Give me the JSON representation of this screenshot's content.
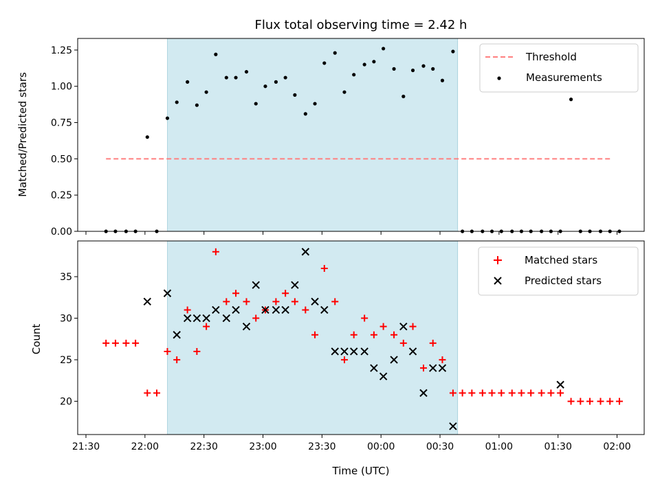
{
  "chart_data": [
    {
      "type": "scatter",
      "title": "Flux total observing time = 2.42 h",
      "xlabel": "",
      "ylabel": "Matched/Predicted stars",
      "ylim": [
        0.0,
        1.33
      ],
      "yticks": [
        "0.00",
        "0.25",
        "0.50",
        "0.75",
        "1.00",
        "1.25"
      ],
      "ytick_values": [
        0,
        0.25,
        0.5,
        0.75,
        1.0,
        1.25
      ],
      "xlim_hours": [
        21.43,
        26.23
      ],
      "shaded_interval_hours": [
        22.19,
        24.65
      ],
      "shade_color": "#add8e6",
      "threshold": {
        "name": "Threshold",
        "value": 0.5,
        "x_range_hours": [
          21.67,
          25.95
        ],
        "color": "#ff7f7f"
      },
      "legend_position": "top-right",
      "series": [
        {
          "name": "Measurements",
          "color": "#000000",
          "x": [
            21.67,
            21.75,
            21.84,
            21.92,
            22.02,
            22.1,
            22.19,
            22.27,
            22.36,
            22.44,
            22.52,
            22.6,
            22.69,
            22.77,
            22.86,
            22.94,
            23.02,
            23.11,
            23.19,
            23.27,
            23.36,
            23.44,
            23.52,
            23.61,
            23.69,
            23.77,
            23.86,
            23.94,
            24.02,
            24.11,
            24.19,
            24.27,
            24.36,
            24.44,
            24.52,
            24.61,
            24.69,
            24.77,
            24.86,
            24.94,
            25.02,
            25.11,
            25.19,
            25.27,
            25.36,
            25.44,
            25.52,
            25.61,
            25.69,
            25.77,
            25.86,
            25.94,
            26.02
          ],
          "y": [
            0,
            0,
            0,
            0,
            0.65,
            0,
            0.78,
            0.89,
            1.03,
            0.87,
            0.96,
            1.22,
            1.06,
            1.06,
            1.1,
            0.88,
            1.0,
            1.03,
            1.06,
            0.94,
            0.81,
            0.88,
            1.16,
            1.23,
            0.96,
            1.08,
            1.15,
            1.17,
            1.26,
            1.12,
            0.93,
            1.11,
            1.14,
            1.12,
            1.04,
            1.24,
            0,
            0,
            0,
            0,
            0,
            0,
            0,
            0,
            0,
            0,
            0,
            0.91,
            0,
            0,
            0,
            0,
            0
          ]
        }
      ]
    },
    {
      "type": "scatter",
      "title": "",
      "xlabel": "Time (UTC)",
      "ylabel": "Count",
      "ylim": [
        16.0,
        39.3
      ],
      "yticks": [
        "20",
        "25",
        "30",
        "35"
      ],
      "ytick_values": [
        20,
        25,
        30,
        35
      ],
      "xticks": [
        "21:30",
        "22:00",
        "22:30",
        "23:00",
        "23:30",
        "00:00",
        "00:30",
        "01:00",
        "01:30",
        "02:00"
      ],
      "xtick_values_hours": [
        21.5,
        22.0,
        22.5,
        23.0,
        23.5,
        24.0,
        24.5,
        25.0,
        25.5,
        26.0
      ],
      "xlim_hours": [
        21.43,
        26.23
      ],
      "shaded_interval_hours": [
        22.19,
        24.65
      ],
      "shade_color": "#add8e6",
      "legend_position": "top-right",
      "series": [
        {
          "name": "Matched stars",
          "color": "#ff0000",
          "marker": "plus",
          "x": [
            21.67,
            21.75,
            21.84,
            21.92,
            22.02,
            22.1,
            22.19,
            22.27,
            22.36,
            22.44,
            22.52,
            22.6,
            22.69,
            22.77,
            22.86,
            22.94,
            23.02,
            23.11,
            23.19,
            23.27,
            23.36,
            23.44,
            23.52,
            23.61,
            23.69,
            23.77,
            23.86,
            23.94,
            24.02,
            24.11,
            24.19,
            24.27,
            24.36,
            24.44,
            24.52,
            24.61,
            24.69,
            24.77,
            24.86,
            24.94,
            25.02,
            25.11,
            25.19,
            25.27,
            25.36,
            25.44,
            25.52,
            25.61,
            25.69,
            25.77,
            25.86,
            25.94,
            26.02
          ],
          "y": [
            27,
            27,
            27,
            27,
            21,
            21,
            26,
            25,
            31,
            26,
            29,
            38,
            32,
            33,
            32,
            30,
            31,
            32,
            33,
            32,
            31,
            28,
            36,
            32,
            25,
            28,
            30,
            28,
            29,
            28,
            27,
            29,
            24,
            27,
            25,
            21,
            21,
            21,
            21,
            21,
            21,
            21,
            21,
            21,
            21,
            21,
            21,
            20,
            20,
            20,
            20,
            20,
            20
          ]
        },
        {
          "name": "Predicted stars",
          "color": "#000000",
          "marker": "x",
          "x": [
            22.02,
            22.19,
            22.27,
            22.36,
            22.44,
            22.52,
            22.6,
            22.69,
            22.77,
            22.86,
            22.94,
            23.02,
            23.11,
            23.19,
            23.27,
            23.36,
            23.44,
            23.52,
            23.61,
            23.69,
            23.77,
            23.86,
            23.94,
            24.02,
            24.11,
            24.19,
            24.27,
            24.36,
            24.44,
            24.52,
            24.61,
            25.52
          ],
          "y": [
            32,
            33,
            28,
            30,
            30,
            30,
            31,
            30,
            31,
            29,
            34,
            31,
            31,
            31,
            34,
            38,
            32,
            31,
            26,
            26,
            26,
            26,
            24,
            23,
            25,
            29,
            26,
            21,
            24,
            24,
            17,
            22
          ]
        }
      ]
    }
  ]
}
